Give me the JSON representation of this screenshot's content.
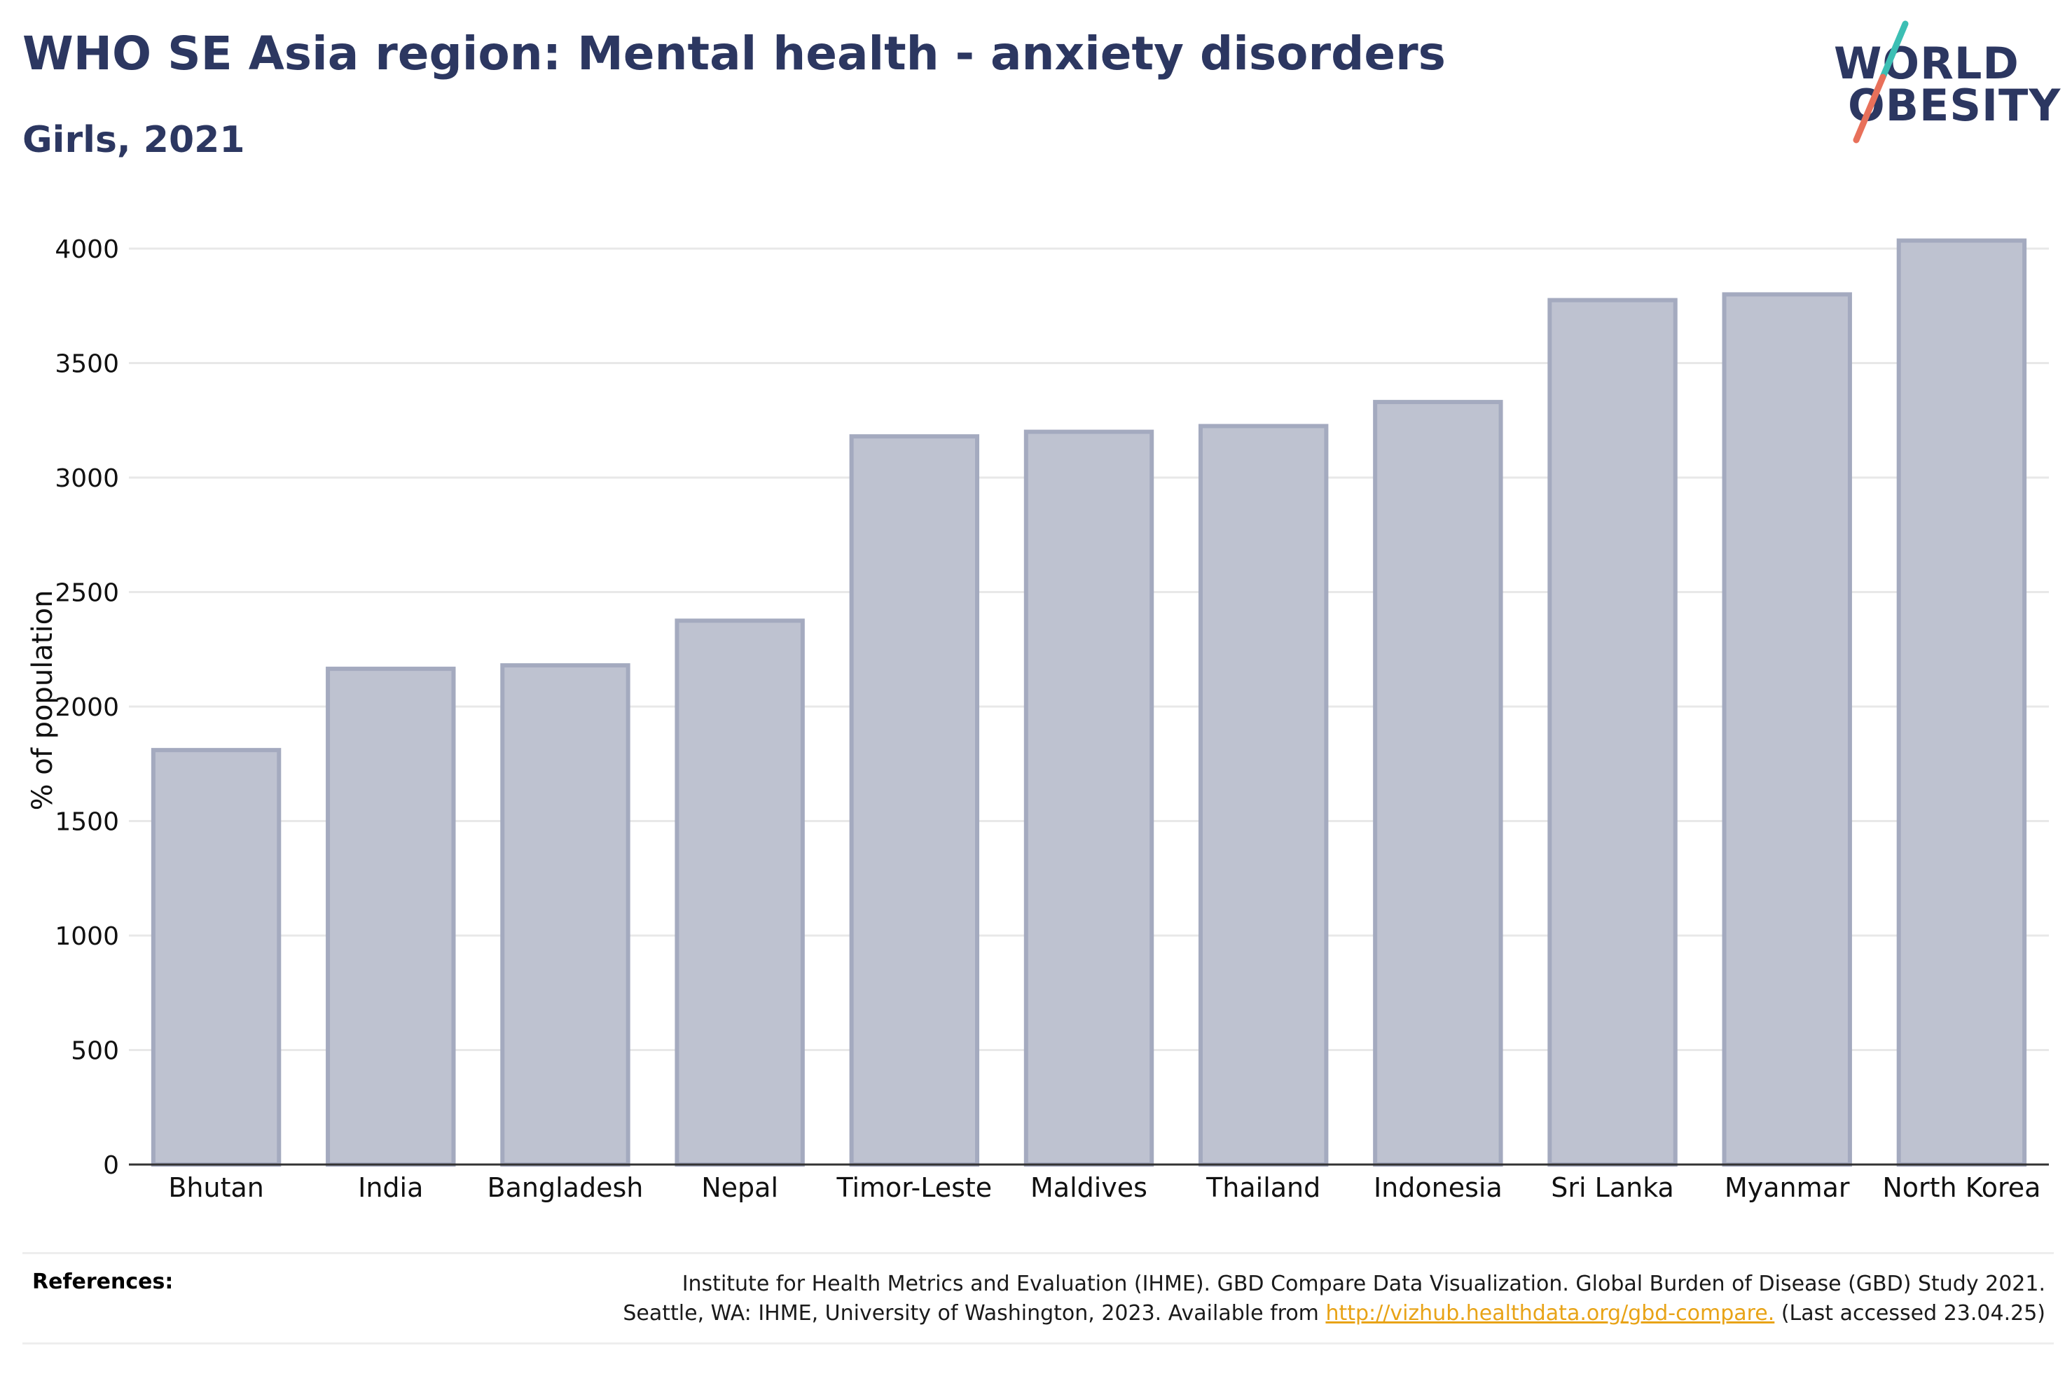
{
  "header": {
    "title": "WHO SE Asia region: Mental health - anxiety disorders",
    "subtitle": "Girls, 2021"
  },
  "logo": {
    "line1": "WORLD",
    "line2": "OBESITY",
    "colors": {
      "text": "#2c3761",
      "slash_top": "#3cbfb4",
      "slash_bottom": "#e8705a"
    }
  },
  "chart_data": {
    "type": "bar",
    "categories": [
      "Bhutan",
      "India",
      "Bangladesh",
      "Nepal",
      "Timor-Leste",
      "Maldives",
      "Thailand",
      "Indonesia",
      "Sri Lanka",
      "Myanmar",
      "North Korea"
    ],
    "values": [
      1810,
      2165,
      2180,
      2375,
      3180,
      3200,
      3225,
      3330,
      3775,
      3800,
      4035
    ],
    "ylabel": "% of population",
    "ylim": [
      0,
      4200
    ],
    "yticks": [
      0,
      500,
      1000,
      1500,
      2000,
      2500,
      3000,
      3500,
      4000
    ],
    "grid": true,
    "colors": {
      "bar_fill": "#bec2d0",
      "bar_edge": "#a4aabf",
      "grid": "#e8e8e8",
      "axis": "#333333"
    }
  },
  "footer": {
    "label": "References:",
    "line1": "Institute for Health Metrics and Evaluation (IHME). GBD Compare Data Visualization. Global Burden of Disease (GBD) Study 2021.",
    "line2_prefix": "Seattle, WA: IHME, University of Washington, 2023. Available from ",
    "link_text": "http://vizhub.healthdata.org/gbd-compare.",
    "line2_suffix": " (Last accessed 23.04.25)"
  }
}
